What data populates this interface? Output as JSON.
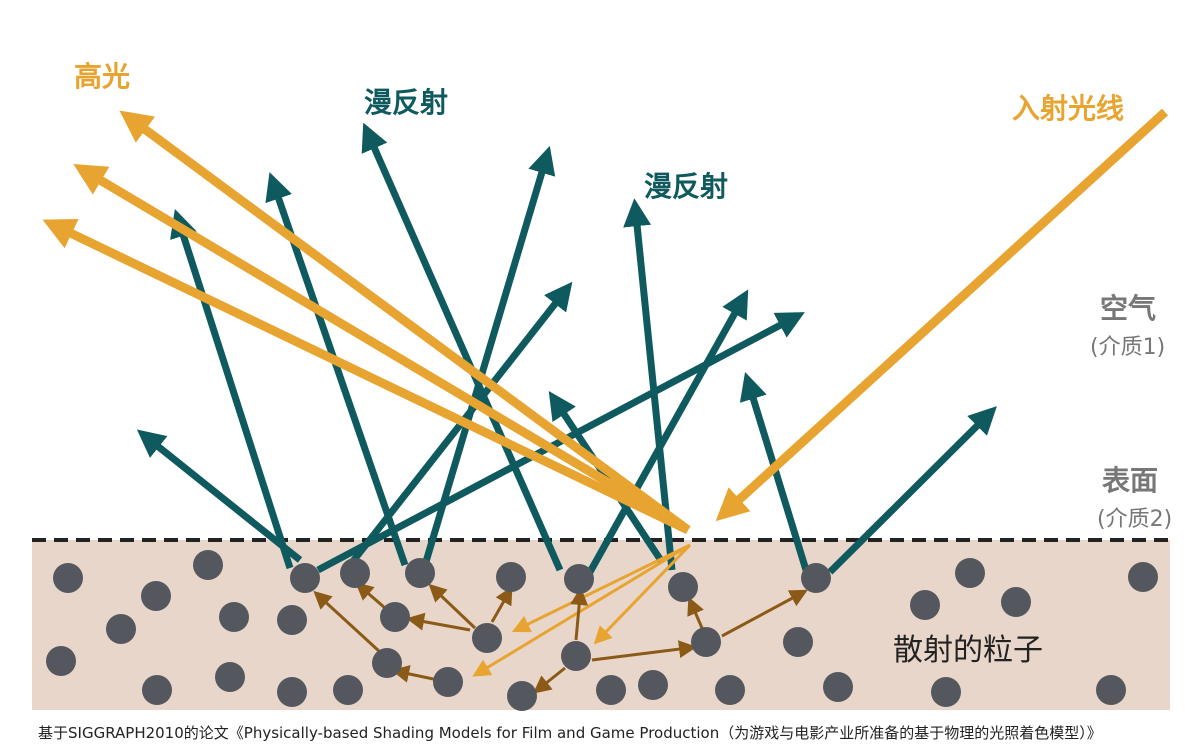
{
  "colors": {
    "teal": "#0f5a5e",
    "orange": "#e8a431",
    "brown": "#8a5a16",
    "particle": "#54585e",
    "medium": "#e8d6ca",
    "gray_text": "#777777",
    "dark_text": "#222222"
  },
  "labels": {
    "specular": "高光",
    "diffuse_left": "漫反射",
    "diffuse_right": "漫反射",
    "incident": "入射光线",
    "air": "空气",
    "air_sub": "(介质1)",
    "surface": "表面",
    "surface_sub": "(介质2)",
    "scattering": "散射的粒子"
  },
  "caption": "基于SIGGRAPH2010的论文《Physically-based Shading Models for Film and Game Production（为游戏与电影产业所准备的基于物理的光照着色模型）》"
}
